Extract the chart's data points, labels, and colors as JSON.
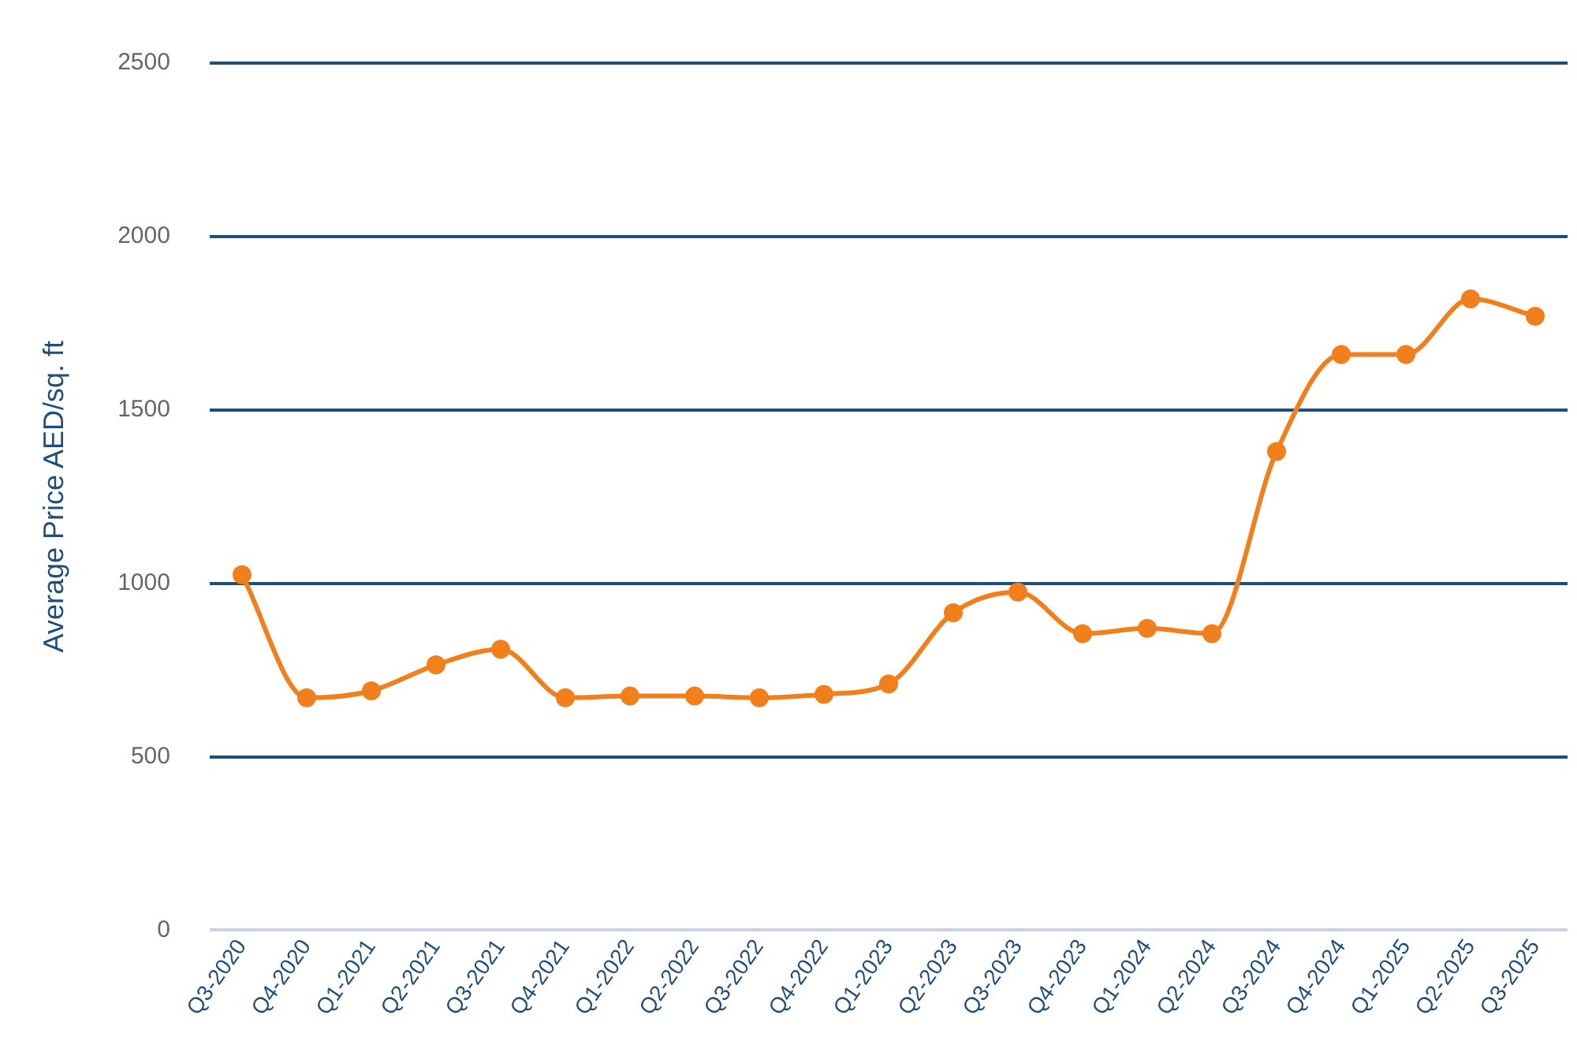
{
  "chart_data": {
    "type": "line",
    "ylabel": "Average Price AED/sq. ft",
    "categories": [
      "Q3-2020",
      "Q4-2020",
      "Q1-2021",
      "Q2-2021",
      "Q3-2021",
      "Q4-2021",
      "Q1-2022",
      "Q2-2022",
      "Q3-2022",
      "Q4-2022",
      "Q1-2023",
      "Q2-2023",
      "Q3-2023",
      "Q4-2023",
      "Q1-2024",
      "Q2-2024",
      "Q3-2024",
      "Q4-2024",
      "Q1-2025",
      "Q2-2025",
      "Q3-2025"
    ],
    "series": [
      {
        "color": "#f07f1c",
        "values": [
          1025,
          670,
          690,
          765,
          810,
          670,
          675,
          675,
          670,
          680,
          710,
          915,
          975,
          855,
          870,
          855,
          1380,
          1660,
          1660,
          1820,
          1770
        ]
      }
    ],
    "ylim": [
      0,
      2500
    ],
    "yticks": [
      0,
      500,
      1000,
      1500,
      2000,
      2500
    ],
    "grid": "y",
    "legend": false,
    "marker": "circle",
    "line_style": "solid"
  }
}
